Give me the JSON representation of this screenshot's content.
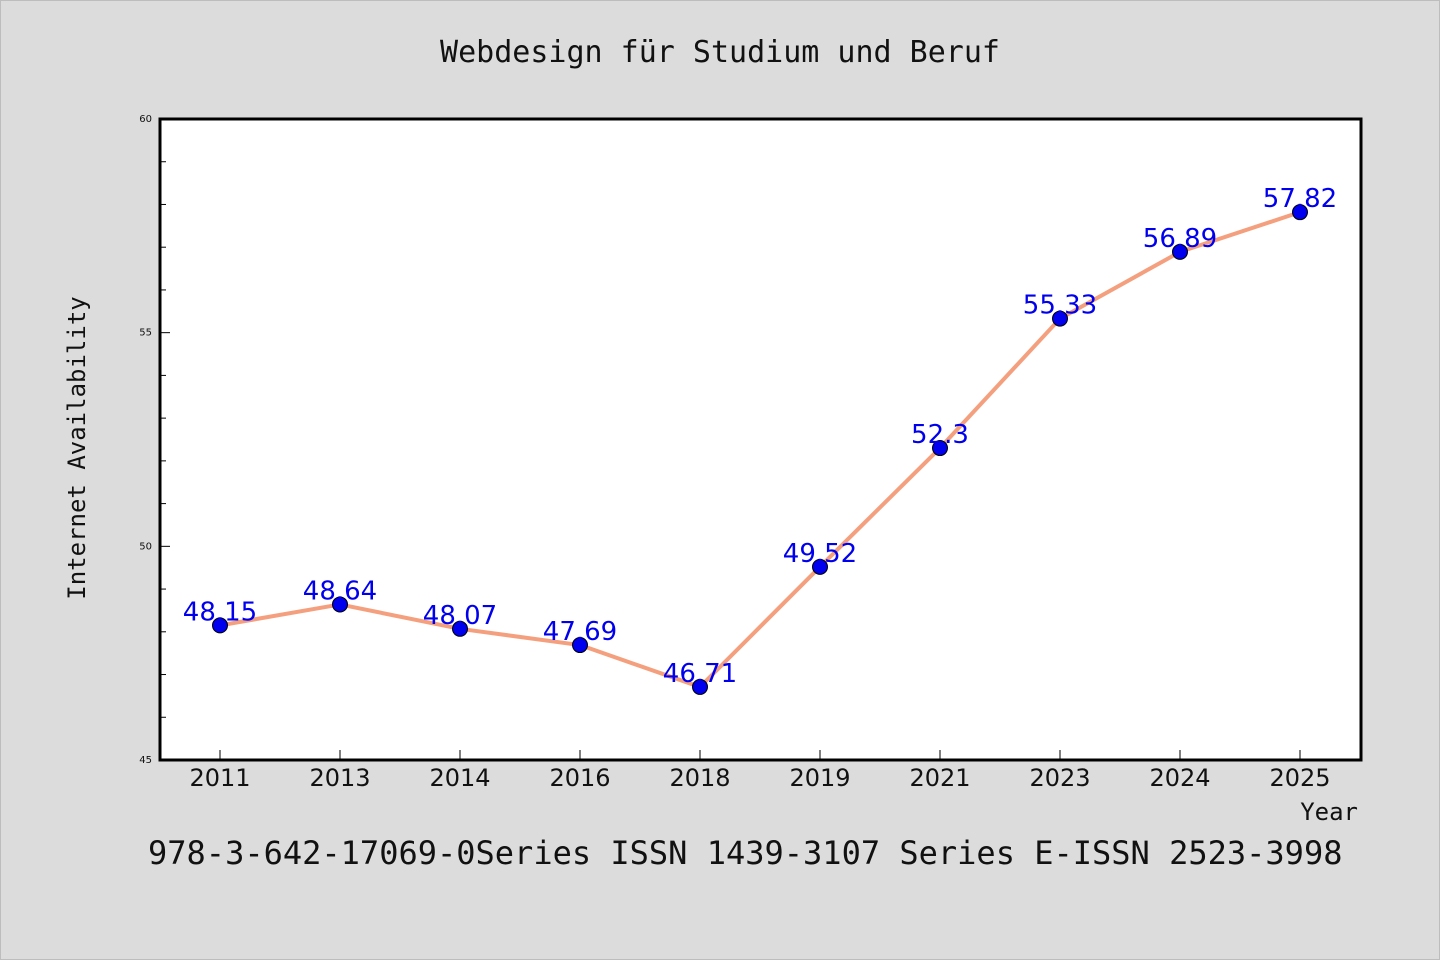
{
  "chart_data": {
    "type": "line",
    "title": "Webdesign für Studium und Beruf",
    "xlabel": "Year",
    "ylabel": "Internet Availability",
    "categories": [
      "2011",
      "2013",
      "2014",
      "2016",
      "2018",
      "2019",
      "2021",
      "2023",
      "2024",
      "2025"
    ],
    "series": [
      {
        "values": [
          48.15,
          48.64,
          48.07,
          47.69,
          46.71,
          49.52,
          52.3,
          55.33,
          56.89,
          57.82
        ],
        "line_color": "#f4a07e",
        "marker_color": "#0000ee"
      }
    ],
    "data_labels": [
      "48.15",
      "48.64",
      "48.07",
      "47.69",
      "46.71",
      "49.52",
      "52.3",
      "55.33",
      "56.89",
      "57.82"
    ],
    "ylim": [
      45,
      60
    ],
    "yticks": [
      "45",
      "50",
      "55",
      "60"
    ],
    "grid": false,
    "legend": "none",
    "label_color": "#0000ee"
  },
  "footer": "978-3-642-17069-0Series ISSN 1439-3107 Series E-ISSN 2523-3998"
}
